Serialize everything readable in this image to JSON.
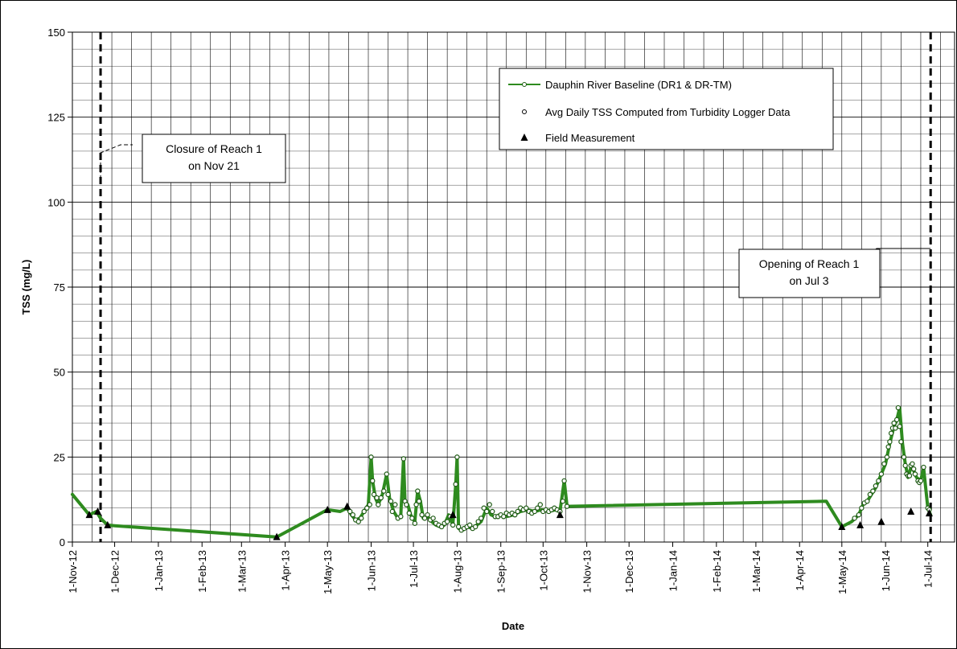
{
  "chart_data": {
    "type": "line",
    "title": "",
    "xlabel": "Date",
    "ylabel": "TSS (mg/L)",
    "xlim": [
      "2012-11-01",
      "2014-07-20"
    ],
    "ylim": [
      0,
      150
    ],
    "yticks": [
      0,
      25,
      50,
      75,
      100,
      125,
      150
    ],
    "xticks": [
      "2012-11-01",
      "2012-12-01",
      "2013-01-01",
      "2013-02-01",
      "2013-03-01",
      "2013-04-01",
      "2013-05-01",
      "2013-06-01",
      "2013-07-01",
      "2013-08-01",
      "2013-09-01",
      "2013-10-01",
      "2013-11-01",
      "2013-12-01",
      "2014-01-01",
      "2014-02-01",
      "2014-03-01",
      "2014-04-01",
      "2014-05-01",
      "2014-06-01",
      "2014-07-01"
    ],
    "xtick_labels": [
      "1-Nov-12",
      "1-Dec-12",
      "1-Jan-13",
      "1-Feb-13",
      "1-Mar-13",
      "1-Apr-13",
      "1-May-13",
      "1-Jun-13",
      "1-Jul-13",
      "1-Aug-13",
      "1-Sep-13",
      "1-Oct-13",
      "1-Nov-13",
      "1-Dec-13",
      "1-Jan-14",
      "1-Feb-14",
      "1-Mar-14",
      "1-Apr-14",
      "1-May-14",
      "1-Jun-14",
      "1-Jul-14"
    ],
    "grid": true,
    "legend_position": "top-right",
    "colors": {
      "baseline": "#2e8b1f",
      "marker_edge": "#1e5a14",
      "marker_fill": "#ffffff",
      "field": "#000000"
    },
    "series": [
      {
        "name": "Dauphin River Baseline (DR1 & DR-TM)",
        "style": "line",
        "points": [
          [
            "2012-11-01",
            14
          ],
          [
            "2012-11-13",
            8
          ],
          [
            "2012-11-18",
            9
          ],
          [
            "2012-11-21",
            7
          ],
          [
            "2012-11-26",
            5
          ],
          [
            "2012-12-01",
            4.8
          ],
          [
            "2013-03-26",
            1.5
          ],
          [
            "2013-05-01",
            9.5
          ],
          [
            "2013-05-10",
            9
          ],
          [
            "2013-05-15",
            10
          ],
          [
            "2013-05-18",
            8
          ],
          [
            "2013-05-21",
            6.5
          ],
          [
            "2013-05-24",
            7
          ],
          [
            "2013-05-27",
            9
          ],
          [
            "2013-05-30",
            11
          ],
          [
            "2013-06-01",
            25
          ],
          [
            "2013-06-02",
            18
          ],
          [
            "2013-06-04",
            13
          ],
          [
            "2013-06-06",
            11
          ],
          [
            "2013-06-09",
            14
          ],
          [
            "2013-06-12",
            20
          ],
          [
            "2013-06-14",
            13
          ],
          [
            "2013-06-17",
            9
          ],
          [
            "2013-06-20",
            7
          ],
          [
            "2013-06-22",
            7.5
          ],
          [
            "2013-06-24",
            24.5
          ],
          [
            "2013-06-25",
            12
          ],
          [
            "2013-06-27",
            11
          ],
          [
            "2013-06-29",
            8
          ],
          [
            "2013-07-02",
            6
          ],
          [
            "2013-07-04",
            15
          ],
          [
            "2013-07-06",
            12
          ],
          [
            "2013-07-08",
            7
          ],
          [
            "2013-07-11",
            7.5
          ],
          [
            "2013-07-14",
            6
          ],
          [
            "2013-07-17",
            5
          ],
          [
            "2013-07-20",
            4.5
          ],
          [
            "2013-07-23",
            5
          ],
          [
            "2013-07-26",
            8
          ],
          [
            "2013-07-29",
            5
          ],
          [
            "2013-07-31",
            17
          ],
          [
            "2013-08-01",
            25
          ],
          [
            "2013-08-02",
            4
          ],
          [
            "2013-08-05",
            3.5
          ],
          [
            "2013-08-08",
            4.5
          ],
          [
            "2013-08-12",
            4
          ],
          [
            "2013-08-15",
            5
          ],
          [
            "2013-08-18",
            6
          ],
          [
            "2013-08-22",
            10
          ],
          [
            "2013-08-25",
            8
          ],
          [
            "2013-08-28",
            7.5
          ],
          [
            "2013-08-31",
            8
          ],
          [
            "2013-09-05",
            7.5
          ],
          [
            "2013-09-10",
            8
          ],
          [
            "2013-09-15",
            9
          ],
          [
            "2013-09-20",
            9.5
          ],
          [
            "2013-09-25",
            9
          ],
          [
            "2013-09-30",
            9.5
          ],
          [
            "2013-10-05",
            9
          ],
          [
            "2013-10-10",
            9.5
          ],
          [
            "2013-10-13",
            9
          ],
          [
            "2013-10-16",
            18
          ],
          [
            "2013-10-18",
            10.5
          ],
          [
            "2014-04-20",
            12
          ],
          [
            "2014-05-01",
            4.5
          ],
          [
            "2014-05-08",
            6
          ],
          [
            "2014-05-13",
            8
          ],
          [
            "2014-05-16",
            11
          ],
          [
            "2014-05-19",
            12
          ],
          [
            "2014-05-22",
            14
          ],
          [
            "2014-05-25",
            16
          ],
          [
            "2014-05-28",
            19
          ],
          [
            "2014-06-01",
            23
          ],
          [
            "2014-06-04",
            29
          ],
          [
            "2014-06-07",
            34
          ],
          [
            "2014-06-09",
            36
          ],
          [
            "2014-06-11",
            39.5
          ],
          [
            "2014-06-13",
            29
          ],
          [
            "2014-06-15",
            23
          ],
          [
            "2014-06-17",
            19
          ],
          [
            "2014-06-19",
            22
          ],
          [
            "2014-06-21",
            21
          ],
          [
            "2014-06-23",
            19
          ],
          [
            "2014-06-26",
            18
          ],
          [
            "2014-06-28",
            22
          ],
          [
            "2014-07-01",
            10
          ],
          [
            "2014-07-03",
            8
          ]
        ]
      },
      {
        "name": "Avg Daily TSS Computed from Turbidity Logger Data",
        "style": "circles",
        "points": [
          [
            "2013-05-15",
            10
          ],
          [
            "2013-05-17",
            9
          ],
          [
            "2013-05-19",
            8
          ],
          [
            "2013-05-21",
            6.5
          ],
          [
            "2013-05-23",
            6
          ],
          [
            "2013-05-25",
            7
          ],
          [
            "2013-05-27",
            9
          ],
          [
            "2013-05-29",
            10
          ],
          [
            "2013-05-31",
            11
          ],
          [
            "2013-06-01",
            25
          ],
          [
            "2013-06-02",
            18
          ],
          [
            "2013-06-03",
            14
          ],
          [
            "2013-06-05",
            13
          ],
          [
            "2013-06-06",
            11
          ],
          [
            "2013-06-08",
            13
          ],
          [
            "2013-06-10",
            15
          ],
          [
            "2013-06-12",
            20
          ],
          [
            "2013-06-13",
            14
          ],
          [
            "2013-06-15",
            12
          ],
          [
            "2013-06-16",
            9
          ],
          [
            "2013-06-18",
            11
          ],
          [
            "2013-06-20",
            7
          ],
          [
            "2013-06-22",
            7.5
          ],
          [
            "2013-06-24",
            24.5
          ],
          [
            "2013-06-25",
            12
          ],
          [
            "2013-06-26",
            11
          ],
          [
            "2013-06-28",
            8.5
          ],
          [
            "2013-06-30",
            7
          ],
          [
            "2013-07-02",
            5.5
          ],
          [
            "2013-07-03",
            11
          ],
          [
            "2013-07-04",
            15
          ],
          [
            "2013-07-05",
            12
          ],
          [
            "2013-07-07",
            8
          ],
          [
            "2013-07-09",
            7
          ],
          [
            "2013-07-11",
            8
          ],
          [
            "2013-07-13",
            6.5
          ],
          [
            "2013-07-15",
            7
          ],
          [
            "2013-07-17",
            5.5
          ],
          [
            "2013-07-19",
            5
          ],
          [
            "2013-07-21",
            4.5
          ],
          [
            "2013-07-23",
            5.5
          ],
          [
            "2013-07-25",
            6
          ],
          [
            "2013-07-27",
            7.5
          ],
          [
            "2013-07-29",
            5
          ],
          [
            "2013-07-31",
            17
          ],
          [
            "2013-08-01",
            25
          ],
          [
            "2013-08-02",
            4.5
          ],
          [
            "2013-08-04",
            3.5
          ],
          [
            "2013-08-06",
            4
          ],
          [
            "2013-08-08",
            4.5
          ],
          [
            "2013-08-10",
            5
          ],
          [
            "2013-08-12",
            4
          ],
          [
            "2013-08-14",
            4.5
          ],
          [
            "2013-08-16",
            6
          ],
          [
            "2013-08-18",
            7
          ],
          [
            "2013-08-20",
            10
          ],
          [
            "2013-08-22",
            9
          ],
          [
            "2013-08-24",
            11
          ],
          [
            "2013-08-26",
            9
          ],
          [
            "2013-08-28",
            7.5
          ],
          [
            "2013-08-30",
            7.5
          ],
          [
            "2013-09-01",
            8
          ],
          [
            "2013-09-03",
            7.5
          ],
          [
            "2013-09-05",
            8.5
          ],
          [
            "2013-09-07",
            8
          ],
          [
            "2013-09-09",
            8.5
          ],
          [
            "2013-09-11",
            8
          ],
          [
            "2013-09-13",
            9
          ],
          [
            "2013-09-15",
            10
          ],
          [
            "2013-09-17",
            9.5
          ],
          [
            "2013-09-19",
            10
          ],
          [
            "2013-09-21",
            9
          ],
          [
            "2013-09-23",
            8.5
          ],
          [
            "2013-09-25",
            9
          ],
          [
            "2013-09-27",
            10
          ],
          [
            "2013-09-29",
            11
          ],
          [
            "2013-10-01",
            9
          ],
          [
            "2013-10-03",
            9.5
          ],
          [
            "2013-10-05",
            9
          ],
          [
            "2013-10-07",
            9.5
          ],
          [
            "2013-10-09",
            10
          ],
          [
            "2013-10-11",
            9.5
          ],
          [
            "2013-10-13",
            9
          ],
          [
            "2013-10-15",
            12
          ],
          [
            "2013-10-16",
            18
          ],
          [
            "2013-10-18",
            10.5
          ],
          [
            "2014-05-10",
            7
          ],
          [
            "2014-05-13",
            8
          ],
          [
            "2014-05-15",
            10
          ],
          [
            "2014-05-17",
            11.5
          ],
          [
            "2014-05-19",
            12
          ],
          [
            "2014-05-21",
            14
          ],
          [
            "2014-05-23",
            15
          ],
          [
            "2014-05-25",
            16.5
          ],
          [
            "2014-05-27",
            18
          ],
          [
            "2014-05-29",
            20
          ],
          [
            "2014-05-31",
            23
          ],
          [
            "2014-06-02",
            25
          ],
          [
            "2014-06-03",
            28
          ],
          [
            "2014-06-04",
            29.5
          ],
          [
            "2014-06-05",
            32
          ],
          [
            "2014-06-06",
            33.5
          ],
          [
            "2014-06-07",
            35
          ],
          [
            "2014-06-08",
            33.5
          ],
          [
            "2014-06-09",
            36
          ],
          [
            "2014-06-10",
            39.5
          ],
          [
            "2014-06-11",
            34
          ],
          [
            "2014-06-12",
            29.5
          ],
          [
            "2014-06-14",
            25
          ],
          [
            "2014-06-15",
            22.5
          ],
          [
            "2014-06-16",
            20
          ],
          [
            "2014-06-17",
            19.5
          ],
          [
            "2014-06-18",
            19.5
          ],
          [
            "2014-06-19",
            22.5
          ],
          [
            "2014-06-20",
            23
          ],
          [
            "2014-06-21",
            21.5
          ],
          [
            "2014-06-22",
            20
          ],
          [
            "2014-06-24",
            18
          ],
          [
            "2014-06-25",
            17.5
          ],
          [
            "2014-06-26",
            18
          ],
          [
            "2014-06-28",
            22
          ],
          [
            "2014-07-01",
            10
          ],
          [
            "2014-07-02",
            9.5
          ]
        ]
      },
      {
        "name": "Field Measurement",
        "style": "triangles",
        "points": [
          [
            "2012-11-13",
            8
          ],
          [
            "2012-11-19",
            9
          ],
          [
            "2012-11-26",
            5
          ],
          [
            "2013-03-26",
            1.5
          ],
          [
            "2013-05-01",
            9.5
          ],
          [
            "2013-05-15",
            10.5
          ],
          [
            "2013-07-29",
            8
          ],
          [
            "2013-10-13",
            8
          ],
          [
            "2014-05-01",
            4.5
          ],
          [
            "2014-05-14",
            5
          ],
          [
            "2014-05-29",
            6
          ],
          [
            "2014-06-19",
            9
          ],
          [
            "2014-07-02",
            8.5
          ]
        ]
      }
    ],
    "annotations": [
      {
        "label_lines": [
          "Closure of Reach 1",
          "on Nov 21"
        ],
        "date": "2012-11-21"
      },
      {
        "label_lines": [
          "Opening of Reach 1",
          "on Jul 3"
        ],
        "date": "2014-07-03"
      }
    ]
  }
}
